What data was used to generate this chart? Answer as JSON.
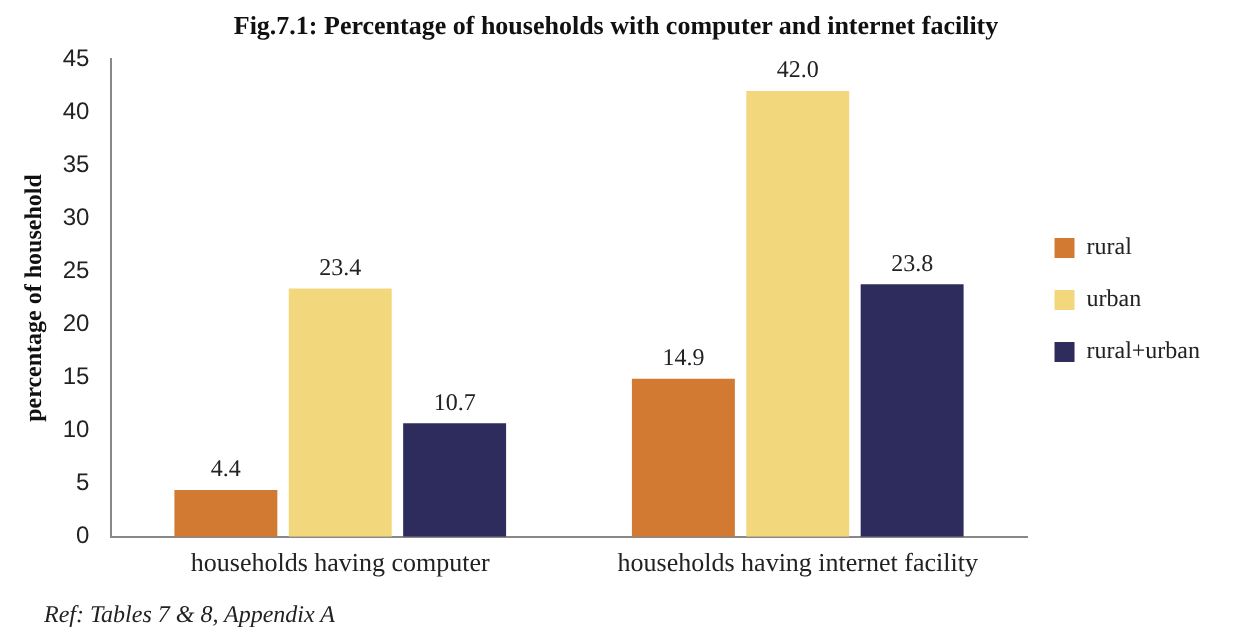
{
  "chart_data": {
    "type": "bar",
    "title": "Fig.7.1: Percentage of households with computer and internet facility",
    "ylabel": "percentage of household",
    "categories": [
      "households having computer",
      "households having internet facility"
    ],
    "series": [
      {
        "name": "rural",
        "color": "#d27a32",
        "values": [
          4.4,
          14.9
        ],
        "value_labels": [
          "4.4",
          "14.9"
        ]
      },
      {
        "name": "urban",
        "color": "#f3d77c",
        "values": [
          23.4,
          42
        ],
        "value_labels": [
          "23.4",
          "42.0"
        ]
      },
      {
        "name": "rural+urban",
        "color": "#2e2c5c",
        "values": [
          10.7,
          23.8
        ],
        "value_labels": [
          "10.7",
          "23.8"
        ]
      }
    ],
    "ylim": [
      0,
      45
    ],
    "yticks": [
      0,
      5,
      10,
      15,
      20,
      25,
      30,
      35,
      40,
      45
    ],
    "grid": false,
    "legend": "right",
    "annotations": [
      "Ref: Tables 7 & 8, Appendix A"
    ]
  }
}
